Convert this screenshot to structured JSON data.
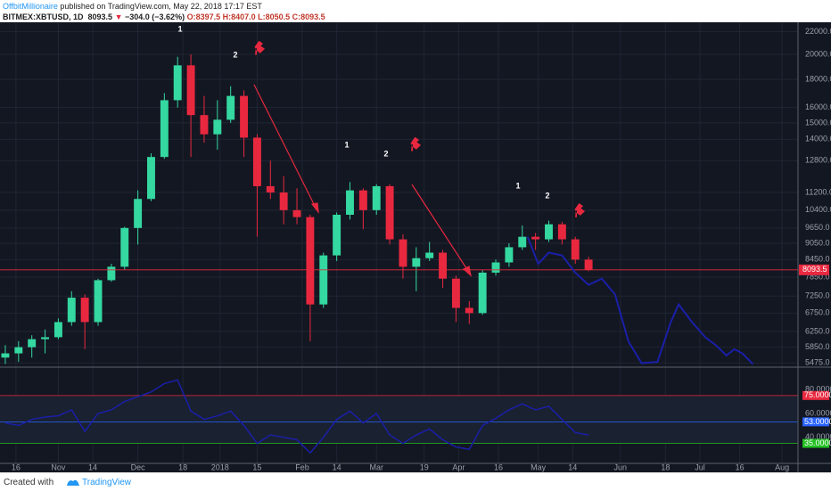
{
  "header": {
    "author": "OffbitMillionaire",
    "published": "published on TradingView.com, May 22, 2018 17:17 EST",
    "symbol": "BITMEX:XBTUSD, 1D",
    "last": "8093.5",
    "arrow": "▼",
    "change": "−304.0 (−3.62%)",
    "ohlc": "O:8397.5 H:8407.0 L:8050.5 C:8093.5"
  },
  "chart_data": [
    {
      "type": "candlestick",
      "log_scale": true,
      "grid": true,
      "up_color": "#34d8a0",
      "down_color": "#e8283f",
      "x": [
        -4,
        1,
        6,
        11,
        16,
        21,
        26,
        31,
        36,
        41,
        46,
        51,
        56,
        61,
        66,
        71,
        76,
        81,
        86,
        91,
        96,
        101,
        106,
        111,
        116,
        121,
        126,
        131,
        136,
        141,
        146,
        151,
        156,
        161,
        166,
        171,
        176,
        181,
        186,
        191,
        196,
        201,
        206,
        211,
        216
      ],
      "open": [
        5600,
        5700,
        5850,
        6050,
        6100,
        6500,
        7200,
        6500,
        7750,
        8200,
        9650,
        10900,
        13000,
        16500,
        19100,
        15500,
        14300,
        15200,
        16800,
        14100,
        11500,
        11200,
        10400,
        10100,
        7000,
        8600,
        10200,
        11300,
        10400,
        11500,
        9200,
        8200,
        8500,
        8700,
        7800,
        6900,
        6750,
        8000,
        8350,
        8900,
        9300,
        9200,
        9800,
        9200,
        8450
      ],
      "high": [
        5900,
        6000,
        6150,
        6300,
        6600,
        7400,
        7300,
        7800,
        8300,
        9700,
        11300,
        13200,
        17000,
        19800,
        20000,
        16800,
        16500,
        17500,
        17200,
        14300,
        12800,
        12000,
        11400,
        10200,
        8700,
        10300,
        11700,
        11400,
        11600,
        11600,
        9400,
        8900,
        9100,
        8800,
        7900,
        7100,
        8100,
        8450,
        9050,
        9750,
        9450,
        9950,
        9900,
        9300,
        8550
      ],
      "low": [
        5450,
        5500,
        5600,
        5700,
        6050,
        6400,
        5800,
        6400,
        7700,
        8100,
        9000,
        10800,
        12900,
        16000,
        13000,
        13800,
        13400,
        15000,
        13000,
        9300,
        10900,
        9800,
        9800,
        6000,
        6900,
        8400,
        10000,
        9600,
        10200,
        9000,
        7800,
        7400,
        8400,
        7500,
        6500,
        6450,
        6700,
        7900,
        8200,
        8800,
        8800,
        9100,
        9000,
        8300,
        8050
      ],
      "close": [
        5700,
        5850,
        6050,
        6100,
        6500,
        7200,
        6500,
        7750,
        8200,
        9650,
        10900,
        13000,
        16500,
        19100,
        15500,
        14300,
        15200,
        16800,
        14100,
        11500,
        11200,
        10400,
        10100,
        7000,
        8600,
        10200,
        11300,
        10400,
        11500,
        9200,
        8200,
        8500,
        8700,
        7800,
        6900,
        6750,
        8000,
        8350,
        8900,
        9300,
        9200,
        9800,
        9200,
        8450,
        8093.5
      ],
      "xlim": [
        -6,
        295
      ],
      "xticks": [
        {
          "value": 0,
          "label": "16"
        },
        {
          "value": 16,
          "label": "Nov"
        },
        {
          "value": 29,
          "label": "14"
        },
        {
          "value": 46,
          "label": "Dec"
        },
        {
          "value": 63,
          "label": "18"
        },
        {
          "value": 77,
          "label": "2018"
        },
        {
          "value": 91,
          "label": "15"
        },
        {
          "value": 108,
          "label": "Feb"
        },
        {
          "value": 121,
          "label": "14"
        },
        {
          "value": 136,
          "label": "Mar"
        },
        {
          "value": 154,
          "label": "19"
        },
        {
          "value": 167,
          "label": "Apr"
        },
        {
          "value": 182,
          "label": "16"
        },
        {
          "value": 197,
          "label": "May"
        },
        {
          "value": 210,
          "label": "14"
        },
        {
          "value": 228,
          "label": "Jun"
        },
        {
          "value": 245,
          "label": "18"
        },
        {
          "value": 258,
          "label": "Jul"
        },
        {
          "value": 273,
          "label": "16"
        },
        {
          "value": 289,
          "label": "Aug"
        }
      ],
      "ylim": [
        5400,
        22800
      ],
      "yticks": [
        {
          "value": 22000,
          "label": "22000.0"
        },
        {
          "value": 20000,
          "label": "20000.0"
        },
        {
          "value": 18000,
          "label": "18000.0"
        },
        {
          "value": 16000,
          "label": "16000.0"
        },
        {
          "value": 15000,
          "label": "15000.0"
        },
        {
          "value": 14000,
          "label": "14000.0"
        },
        {
          "value": 12800,
          "label": "12800.0"
        },
        {
          "value": 11200,
          "label": "11200.0"
        },
        {
          "value": 10400,
          "label": "10400.0"
        },
        {
          "value": 9650,
          "label": "9650.0"
        },
        {
          "value": 9050,
          "label": "9050.0"
        },
        {
          "value": 8450,
          "label": "8450.0"
        },
        {
          "value": 7850,
          "label": "7850.0"
        },
        {
          "value": 7250,
          "label": "7250.0"
        },
        {
          "value": 6750,
          "label": "6750.0"
        },
        {
          "value": 6250,
          "label": "6250.0"
        },
        {
          "value": 5850,
          "label": "5850.0"
        },
        {
          "value": 5475,
          "label": "5475.0"
        }
      ],
      "last_price": {
        "value": 8093.5,
        "label": "8093.5",
        "color": "#e8283f"
      },
      "projection": {
        "color": "#1a1fa8",
        "x": [
          193,
          197,
          201,
          206,
          211,
          216,
          221,
          226,
          231,
          236,
          242,
          247,
          250,
          255,
          260,
          264,
          268,
          271,
          274,
          278
        ],
        "values": [
          9300,
          8300,
          8700,
          8600,
          8000,
          7600,
          7800,
          7300,
          6000,
          5470,
          5500,
          6500,
          7000,
          6500,
          6100,
          5900,
          5650,
          5800,
          5700,
          5450
        ]
      },
      "annotations": [
        "1",
        "2",
        "1",
        "2",
        "1",
        "2"
      ]
    },
    {
      "type": "line",
      "color": "#1a1fa8",
      "x": [
        -4,
        1,
        6,
        11,
        16,
        21,
        26,
        31,
        36,
        41,
        46,
        51,
        56,
        61,
        66,
        71,
        76,
        81,
        86,
        91,
        96,
        101,
        106,
        111,
        116,
        121,
        126,
        131,
        136,
        141,
        146,
        151,
        156,
        161,
        166,
        171,
        176,
        181,
        186,
        191,
        196,
        201,
        206,
        211,
        216
      ],
      "values": [
        52,
        50,
        55,
        57,
        58,
        63,
        45,
        60,
        63,
        70,
        74,
        78,
        85,
        88,
        62,
        55,
        58,
        62,
        50,
        35,
        42,
        40,
        38,
        27,
        40,
        55,
        62,
        52,
        60,
        42,
        35,
        42,
        47,
        38,
        32,
        30,
        50,
        56,
        63,
        68,
        63,
        66,
        55,
        44,
        42
      ],
      "ylim": [
        19,
        98
      ],
      "yticks": [
        {
          "value": 80,
          "label": "80.0000"
        },
        {
          "value": 60,
          "label": "60.0000"
        },
        {
          "value": 40,
          "label": "40.0000"
        }
      ],
      "levels": [
        {
          "value": 75,
          "label": "75.0000",
          "color": "#e8283f"
        },
        {
          "value": 53,
          "label": "53.0000",
          "color": "#2962ff"
        },
        {
          "value": 35,
          "label": "35.0000",
          "color": "#22c022"
        }
      ]
    }
  ],
  "footer": {
    "created": "Created with",
    "brand": "TradingView"
  }
}
